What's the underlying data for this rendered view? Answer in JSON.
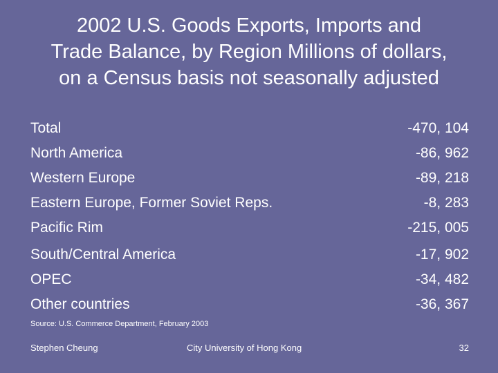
{
  "title": {
    "line1": "2002 U.S. Goods Exports, Imports and",
    "line2": "Trade Balance, by Region Millions of dollars,",
    "line3": "on a Census basis not seasonally adjusted"
  },
  "rows": [
    {
      "label": "Total",
      "value": "-470, 104"
    },
    {
      "label": "North America",
      "value": "-86, 962"
    },
    {
      "label": "Western Europe",
      "value": "-89, 218"
    },
    {
      "label": "Eastern Europe, Former Soviet Reps.",
      "value": "-8, 283"
    },
    {
      "label": "Pacific Rim",
      "value": "-215, 005"
    },
    {
      "label": "South/Central America",
      "value": "-17, 902"
    },
    {
      "label": "OPEC",
      "value": "-34, 482"
    },
    {
      "label": "Other countries",
      "value": "-36, 367"
    }
  ],
  "source": "Source: U.S. Commerce Department, February 2003",
  "footer": {
    "author": "Stephen Cheung",
    "institution": "City University of Hong Kong",
    "page_number": "32"
  },
  "colors": {
    "background": "#666699",
    "text": "#ffffff"
  }
}
